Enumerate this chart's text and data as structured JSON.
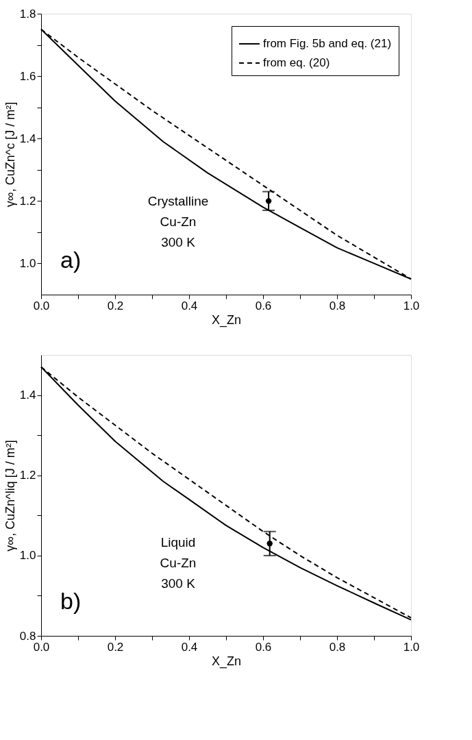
{
  "chart_data": [
    {
      "type": "line",
      "xlabel": "X_Zn",
      "ylabel": "γ∞, CuZn^c [J / m²]",
      "xlim": [
        0,
        1
      ],
      "xticks": [
        {
          "value": 0,
          "label": "0.0"
        },
        {
          "value": 0.1,
          "label": null
        },
        0.2,
        {
          "value": 0.3,
          "label": null
        },
        0.4,
        {
          "value": 0.5,
          "label": null
        },
        0.6,
        {
          "value": 0.7,
          "label": null
        },
        0.8,
        {
          "value": 0.9,
          "label": null
        },
        {
          "value": 1,
          "label": "1.0"
        }
      ],
      "ylim": [
        0.9,
        1.8
      ],
      "yticks": [
        {
          "value": 1,
          "label": "1.0"
        },
        {
          "value": 1.1,
          "label": null
        },
        1.2,
        {
          "value": 1.3,
          "label": null
        },
        1.4,
        {
          "value": 1.5,
          "label": null
        },
        1.6,
        {
          "value": 1.7,
          "label": null
        },
        1.8
      ],
      "series": [
        {
          "name": "from Fig. 5b and eq. (21)",
          "color": "#000000",
          "line_style": "solid",
          "x": [
            0,
            0.1,
            0.2,
            0.33,
            0.45,
            0.6,
            0.7,
            0.8,
            0.9,
            1
          ],
          "values": [
            1.75,
            1.635,
            1.52,
            1.39,
            1.29,
            1.18,
            1.115,
            1.05,
            1.0,
            0.95
          ]
        },
        {
          "name": "from eq. (20)",
          "color": "#000000",
          "line_style": "dashed",
          "x": [
            0,
            0.1,
            0.2,
            0.3,
            0.4,
            0.5,
            0.6,
            0.7,
            0.8,
            0.9,
            1
          ],
          "values": [
            1.75,
            1.66,
            1.575,
            1.49,
            1.41,
            1.33,
            1.25,
            1.17,
            1.09,
            1.02,
            0.95
          ]
        },
        {
          "type": "scatter",
          "color": "#000000",
          "marker": "circle",
          "x": [
            0.615
          ],
          "values": [
            1.2
          ],
          "errors": [
            0.03
          ]
        }
      ],
      "legend": "top right",
      "grid": false,
      "annotations": [
        "a)",
        "Crystalline\nCu-Zn\n300 K"
      ]
    },
    {
      "type": "line",
      "xlabel": "X_Zn",
      "ylabel": "γ∞, CuZn^liq [J / m²]",
      "xlim": [
        0,
        1
      ],
      "xticks": [
        {
          "value": 0,
          "label": "0.0"
        },
        {
          "value": 0.1,
          "label": null
        },
        0.2,
        {
          "value": 0.3,
          "label": null
        },
        0.4,
        {
          "value": 0.5,
          "label": null
        },
        0.6,
        {
          "value": 0.7,
          "label": null
        },
        0.8,
        {
          "value": 0.9,
          "label": null
        },
        {
          "value": 1,
          "label": "1.0"
        }
      ],
      "ylim": [
        0.8,
        1.5
      ],
      "yticks": [
        0.8,
        {
          "value": 0.9,
          "label": null
        },
        {
          "value": 1,
          "label": "1.0"
        },
        {
          "value": 1.1,
          "label": null
        },
        1.2,
        {
          "value": 1.3,
          "label": null
        },
        1.4
      ],
      "series": [
        {
          "name": "from Fig. 5b and eq. (21)",
          "color": "#000000",
          "line_style": "solid",
          "x": [
            0,
            0.1,
            0.2,
            0.33,
            0.4,
            0.5,
            0.6,
            0.7,
            0.8,
            0.9,
            1
          ],
          "values": [
            1.47,
            1.375,
            1.285,
            1.185,
            1.14,
            1.075,
            1.02,
            0.97,
            0.925,
            0.882,
            0.84
          ]
        },
        {
          "name": "from eq. (20)",
          "color": "#000000",
          "line_style": "dashed",
          "x": [
            0,
            0.1,
            0.2,
            0.3,
            0.4,
            0.5,
            0.6,
            0.7,
            0.8,
            0.9,
            1
          ],
          "values": [
            1.47,
            1.395,
            1.325,
            1.255,
            1.19,
            1.125,
            1.06,
            1.0,
            0.945,
            0.895,
            0.845
          ]
        },
        {
          "type": "scatter",
          "color": "#000000",
          "marker": "circle",
          "x": [
            0.618
          ],
          "values": [
            1.03
          ],
          "errors": [
            0.03
          ]
        }
      ],
      "legend": "top right",
      "grid": false,
      "annotations": [
        "b)",
        "Liquid\nCu-Zn\n300 K"
      ]
    }
  ]
}
